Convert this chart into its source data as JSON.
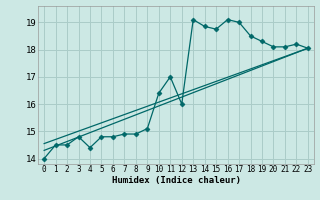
{
  "xlabel": "Humidex (Indice chaleur)",
  "bg_color": "#cce8e4",
  "grid_color": "#aaccc8",
  "line_color": "#006868",
  "xlim": [
    -0.5,
    23.5
  ],
  "ylim": [
    13.8,
    19.6
  ],
  "yticks": [
    14,
    15,
    16,
    17,
    18,
    19
  ],
  "xticks": [
    0,
    1,
    2,
    3,
    4,
    5,
    6,
    7,
    8,
    9,
    10,
    11,
    12,
    13,
    14,
    15,
    16,
    17,
    18,
    19,
    20,
    21,
    22,
    23
  ],
  "line1_x": [
    0,
    1,
    2,
    3,
    4,
    5,
    6,
    7,
    8,
    9,
    10,
    11,
    12,
    13,
    14,
    15,
    16,
    17,
    18,
    19,
    20,
    21,
    22,
    23
  ],
  "line1_y": [
    14.0,
    14.5,
    14.5,
    14.8,
    14.4,
    14.8,
    14.8,
    14.9,
    14.9,
    15.1,
    16.4,
    17.0,
    16.0,
    19.1,
    18.85,
    18.75,
    19.1,
    19.0,
    18.5,
    18.3,
    18.1,
    18.1,
    18.2,
    18.05
  ],
  "line2_x": [
    0,
    23
  ],
  "line2_y": [
    14.55,
    18.05
  ],
  "line3_x": [
    0,
    23
  ],
  "line3_y": [
    14.3,
    18.05
  ],
  "marker": "D",
  "markersize": 2.5,
  "linewidth": 0.9
}
